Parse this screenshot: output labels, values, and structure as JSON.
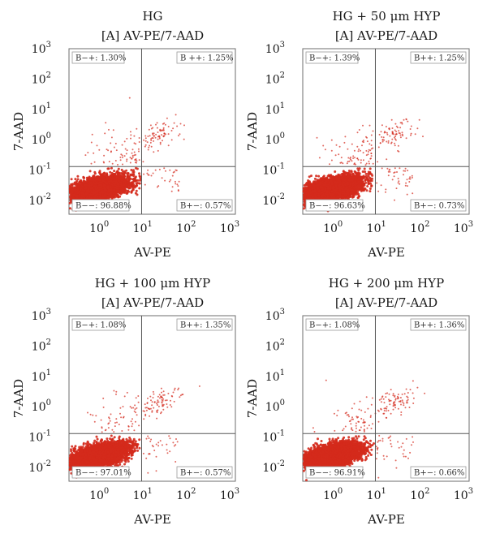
{
  "chart_data": [
    {
      "type": "scatter",
      "title": "HG",
      "subtitle": "[A] AV-PE/7-AAD",
      "xlabel": "AV-PE",
      "ylabel": "7-AAD",
      "x_scale": "log",
      "y_scale": "log",
      "xlim": [
        0.15,
        1000
      ],
      "ylim": [
        0.0035,
        1000
      ],
      "x_ticks": [
        {
          "base": "10",
          "exp": "0"
        },
        {
          "base": "10",
          "exp": "1"
        },
        {
          "base": "10",
          "exp": "2"
        },
        {
          "base": "10",
          "exp": "3"
        }
      ],
      "y_ticks": [
        {
          "base": "10",
          "exp": "-2"
        },
        {
          "base": "10",
          "exp": "-1"
        },
        {
          "base": "10",
          "exp": "0"
        },
        {
          "base": "10",
          "exp": "1"
        },
        {
          "base": "10",
          "exp": "2"
        },
        {
          "base": "10",
          "exp": "3"
        }
      ],
      "gates": {
        "x": 7,
        "y": 0.13
      },
      "quadrants": {
        "upper_left": "B−+: 1.30%",
        "upper_right": "B ++: 1.25%",
        "lower_left": "B−−: 96.88%",
        "lower_right": "B+−: 0.57%"
      },
      "percentages": {
        "upper_left": 1.3,
        "upper_right": 1.25,
        "lower_left": 96.88,
        "lower_right": 0.57
      },
      "point_color": "#d42a1c"
    },
    {
      "type": "scatter",
      "title": "HG + 50 μm HYP",
      "subtitle": "[A] AV-PE/7-AAD",
      "xlabel": "AV-PE",
      "ylabel": "7-AAD",
      "x_scale": "log",
      "y_scale": "log",
      "xlim": [
        0.15,
        1000
      ],
      "ylim": [
        0.0035,
        1000
      ],
      "x_ticks": [
        {
          "base": "10",
          "exp": "0"
        },
        {
          "base": "10",
          "exp": "1"
        },
        {
          "base": "10",
          "exp": "2"
        },
        {
          "base": "10",
          "exp": "3"
        }
      ],
      "y_ticks": [
        {
          "base": "10",
          "exp": "-2"
        },
        {
          "base": "10",
          "exp": "-1"
        },
        {
          "base": "10",
          "exp": "0"
        },
        {
          "base": "10",
          "exp": "1"
        },
        {
          "base": "10",
          "exp": "2"
        },
        {
          "base": "10",
          "exp": "3"
        }
      ],
      "gates": {
        "x": 7,
        "y": 0.13
      },
      "quadrants": {
        "upper_left": "B−+: 1.39%",
        "upper_right": "B++: 1.25%",
        "lower_left": "B−−: 96.63%",
        "lower_right": "B+−: 0.73%"
      },
      "percentages": {
        "upper_left": 1.39,
        "upper_right": 1.25,
        "lower_left": 96.63,
        "lower_right": 0.73
      },
      "point_color": "#d42a1c"
    },
    {
      "type": "scatter",
      "title": "HG + 100 μm HYP",
      "subtitle": "[A] AV-PE/7-AAD",
      "xlabel": "AV-PE",
      "ylabel": "7-AAD",
      "x_scale": "log",
      "y_scale": "log",
      "xlim": [
        0.15,
        1000
      ],
      "ylim": [
        0.0035,
        1000
      ],
      "x_ticks": [
        {
          "base": "10",
          "exp": "0"
        },
        {
          "base": "10",
          "exp": "1"
        },
        {
          "base": "10",
          "exp": "2"
        },
        {
          "base": "10",
          "exp": "3"
        }
      ],
      "y_ticks": [
        {
          "base": "10",
          "exp": "-2"
        },
        {
          "base": "10",
          "exp": "-1"
        },
        {
          "base": "10",
          "exp": "0"
        },
        {
          "base": "10",
          "exp": "1"
        },
        {
          "base": "10",
          "exp": "2"
        },
        {
          "base": "10",
          "exp": "3"
        }
      ],
      "gates": {
        "x": 7,
        "y": 0.13
      },
      "quadrants": {
        "upper_left": "B−+: 1.08%",
        "upper_right": "B++: 1.35%",
        "lower_left": "B−−: 97.01%",
        "lower_right": "B+−: 0.57%"
      },
      "percentages": {
        "upper_left": 1.08,
        "upper_right": 1.35,
        "lower_left": 97.01,
        "lower_right": 0.57
      },
      "point_color": "#d42a1c"
    },
    {
      "type": "scatter",
      "title": "HG + 200 μm HYP",
      "subtitle": "[A] AV-PE/7-AAD",
      "xlabel": "AV-PE",
      "ylabel": "7-AAD",
      "x_scale": "log",
      "y_scale": "log",
      "xlim": [
        0.15,
        1000
      ],
      "ylim": [
        0.0035,
        1000
      ],
      "x_ticks": [
        {
          "base": "10",
          "exp": "0"
        },
        {
          "base": "10",
          "exp": "1"
        },
        {
          "base": "10",
          "exp": "2"
        },
        {
          "base": "10",
          "exp": "3"
        }
      ],
      "y_ticks": [
        {
          "base": "10",
          "exp": "-2"
        },
        {
          "base": "10",
          "exp": "-1"
        },
        {
          "base": "10",
          "exp": "0"
        },
        {
          "base": "10",
          "exp": "1"
        },
        {
          "base": "10",
          "exp": "2"
        },
        {
          "base": "10",
          "exp": "3"
        }
      ],
      "gates": {
        "x": 7,
        "y": 0.13
      },
      "quadrants": {
        "upper_left": "B−+: 1.08%",
        "upper_right": "B++: 1.36%",
        "lower_left": "B−−: 96.91%",
        "lower_right": "B+−: 0.66%"
      },
      "percentages": {
        "upper_left": 1.08,
        "upper_right": 1.36,
        "lower_left": 96.91,
        "lower_right": 0.66
      },
      "point_color": "#d42a1c"
    }
  ]
}
